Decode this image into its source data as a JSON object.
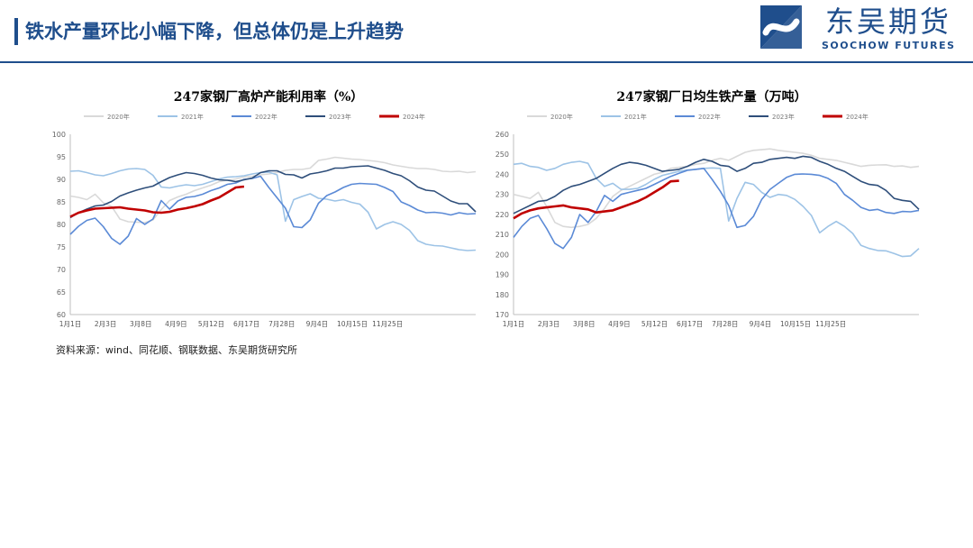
{
  "header": {
    "title": "铁水产量环比小幅下降，但总体仍是上升趋势",
    "logo_cn": "东吴期货",
    "logo_en": "SOOCHOW FUTURES",
    "accent_color": "#1f4e8c"
  },
  "source_note": "资料来源：wind、同花顺、钢联数据、东吴期货研究所",
  "chart_data": [
    {
      "type": "line",
      "title": "247家钢厂高炉产能利用率（%）",
      "ylim": [
        60,
        100
      ],
      "yticks": [
        60,
        65,
        70,
        75,
        80,
        85,
        90,
        95,
        100
      ],
      "x_ticks": [
        "1月1日",
        "2月3日",
        "3月8日",
        "4月9日",
        "5月12日",
        "6月17日",
        "7月28日",
        "9月4日",
        "10月15日",
        "11月25日"
      ],
      "legend_position": "top",
      "series": [
        {
          "name": "2020年",
          "color": "#d9d9d9",
          "values": [
            86.3,
            86,
            85.5,
            86.7,
            84.8,
            84,
            81.2,
            80.6,
            80.5,
            80.4,
            81,
            83.3,
            85.3,
            86.1,
            86.7,
            87.5,
            88.1,
            88.7,
            89.5,
            89.8,
            90.1,
            90.5,
            90.7,
            91,
            91.2,
            91.5,
            92,
            92.2,
            92.2,
            92.5,
            94.2,
            94.5,
            94.9,
            94.7,
            94.5,
            94.4,
            94.2,
            94,
            93.7,
            93.2,
            92.9,
            92.6,
            92.4,
            92.4,
            92.2,
            91.8,
            91.7,
            91.8,
            91.5,
            91.7
          ]
        },
        {
          "name": "2021年",
          "color": "#9dc3e6",
          "values": [
            91.8,
            91.9,
            91.5,
            91,
            90.8,
            91.3,
            91.9,
            92.3,
            92.4,
            92.2,
            90.9,
            88.3,
            88.1,
            88.5,
            88.8,
            88.6,
            88.9,
            89.5,
            90.1,
            90.5,
            90.6,
            90.8,
            91.2,
            91.5,
            91.6,
            91,
            80.7,
            85.5,
            86.2,
            86.8,
            85.8,
            85.6,
            85.2,
            85.5,
            84.9,
            84.5,
            82.7,
            79,
            80,
            80.6,
            80,
            78.7,
            76.4,
            75.6,
            75.3,
            75.2,
            74.8,
            74.4,
            74.2,
            74.3
          ]
        },
        {
          "name": "2022年",
          "color": "#5b8ad6",
          "values": [
            77.8,
            79.6,
            80.9,
            81.4,
            79.5,
            76.9,
            75.6,
            77.4,
            81.3,
            80,
            81.2,
            85.3,
            83.4,
            85.2,
            86,
            86.2,
            86.7,
            87.5,
            88.1,
            88.9,
            89.2,
            90,
            90.2,
            90.7,
            88.2,
            85.9,
            83.6,
            79.5,
            79.3,
            81,
            84.7,
            86.4,
            87.2,
            88.2,
            88.9,
            89.1,
            89,
            88.9,
            88.2,
            87.3,
            85,
            84.2,
            83.2,
            82.6,
            82.7,
            82.5,
            82.1,
            82.6,
            82.3,
            82.4
          ]
        },
        {
          "name": "2023年",
          "color": "#2e4e7a",
          "values": [
            81.5,
            82.6,
            83.4,
            84.1,
            84.3,
            85.1,
            86.3,
            87,
            87.6,
            88.1,
            88.5,
            89.5,
            90.4,
            91,
            91.5,
            91.3,
            90.9,
            90.3,
            89.9,
            89.8,
            89.5,
            89.9,
            90.3,
            91.5,
            91.9,
            91.9,
            91.1,
            91,
            90.3,
            91.2,
            91.5,
            91.9,
            92.5,
            92.5,
            92.8,
            92.9,
            93,
            92.5,
            92,
            91.3,
            90.8,
            89.7,
            88.3,
            87.6,
            87.4,
            86.3,
            85.2,
            84.6,
            84.6,
            82.8
          ]
        },
        {
          "name": "2024年",
          "color": "#c00000",
          "values": [
            81.7,
            82.6,
            83.1,
            83.5,
            83.6,
            83.7,
            83.8,
            83.5,
            83.3,
            83.1,
            82.7,
            82.6,
            82.8,
            83.3,
            83.6,
            84,
            84.5,
            85.3,
            86,
            87.1,
            88.2,
            88.4
          ]
        }
      ]
    },
    {
      "type": "line",
      "title": "247家钢厂日均生铁产量（万吨）",
      "ylim": [
        170,
        260
      ],
      "yticks": [
        170,
        180,
        190,
        200,
        210,
        220,
        230,
        240,
        250,
        260
      ],
      "x_ticks": [
        "1月1日",
        "2月3日",
        "3月8日",
        "4月9日",
        "5月12日",
        "6月17日",
        "7月28日",
        "9月4日",
        "10月15日",
        "11月25日"
      ],
      "legend_position": "top",
      "series": [
        {
          "name": "2020年",
          "color": "#d9d9d9",
          "values": [
            230,
            229,
            228,
            231,
            224,
            216,
            214,
            213.5,
            214,
            215,
            218,
            223,
            229,
            232,
            234,
            236,
            238,
            240,
            241,
            243,
            243.5,
            244,
            245,
            245.5,
            247,
            248,
            247,
            249,
            251,
            252,
            252.3,
            252.7,
            252,
            251.5,
            251,
            250.5,
            249.5,
            248,
            247.5,
            247,
            246,
            245,
            244,
            244.5,
            244.7,
            244.8,
            244,
            244.2,
            243.5,
            244
          ]
        },
        {
          "name": "2021年",
          "color": "#9dc3e6",
          "values": [
            245,
            245.5,
            244,
            243.5,
            242,
            243,
            245,
            246,
            246.5,
            245.5,
            238,
            234,
            235.5,
            232.5,
            232.5,
            233,
            235,
            237.5,
            239.5,
            240.5,
            241.5,
            242.2,
            242.5,
            243,
            243.2,
            243,
            216.7,
            228,
            236,
            235,
            231,
            228.5,
            230,
            229.5,
            227.5,
            224,
            219.5,
            210.8,
            214,
            216.5,
            214,
            210.5,
            204.5,
            203,
            202,
            201.8,
            200.5,
            199,
            199.3,
            203
          ]
        },
        {
          "name": "2022年",
          "color": "#5b8ad6",
          "values": [
            208.5,
            214,
            218,
            219.5,
            213,
            205.5,
            203,
            208.5,
            220,
            216,
            221.5,
            229.5,
            226.5,
            230,
            231,
            232,
            233,
            235,
            237,
            239,
            240.5,
            242,
            242.5,
            243,
            237.5,
            231.5,
            224.5,
            213.5,
            214.5,
            219,
            227.5,
            232.5,
            235.5,
            238.5,
            240,
            240.2,
            240,
            239.5,
            238,
            235.5,
            230,
            227,
            223.5,
            222,
            222.5,
            221,
            220.5,
            221.5,
            221.3,
            222
          ]
        },
        {
          "name": "2023年",
          "color": "#2e4e7a",
          "values": [
            220.5,
            222.5,
            224.5,
            226.5,
            227,
            229,
            232,
            234,
            235,
            236.5,
            238,
            240.5,
            243,
            245,
            246,
            245.5,
            244.5,
            243,
            241.5,
            242,
            242.5,
            244,
            246,
            247.5,
            246.5,
            244.5,
            244,
            241.5,
            243,
            245.5,
            246,
            247.5,
            248,
            248.5,
            248,
            249,
            248.5,
            246.5,
            245,
            243,
            241.5,
            239,
            236.5,
            235,
            234.5,
            232,
            228,
            227,
            226.5,
            222.5
          ]
        },
        {
          "name": "2024年",
          "color": "#c00000",
          "values": [
            218,
            220.5,
            222,
            223,
            223.5,
            224,
            224.5,
            223.5,
            223,
            222.5,
            221,
            221.5,
            222,
            223.5,
            225,
            226.5,
            228.5,
            231,
            233.5,
            236.5,
            236.8
          ]
        }
      ]
    }
  ]
}
